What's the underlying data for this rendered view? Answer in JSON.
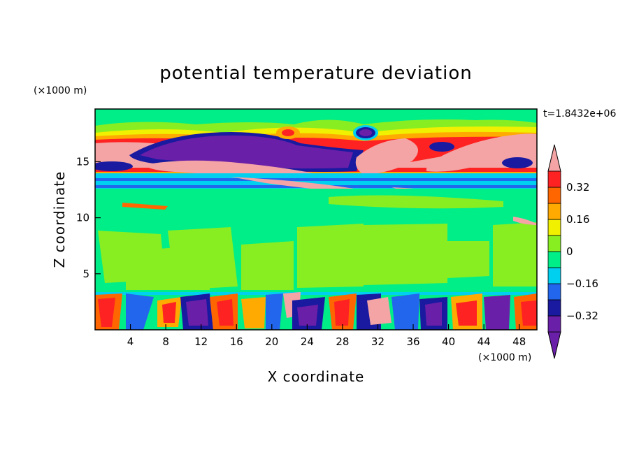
{
  "chart_data": {
    "type": "heatmap",
    "title": "potential temperature deviation",
    "xlabel": "X coordinate",
    "ylabel": "Z coordinate",
    "x_unit": "(×1000 m)",
    "y_unit": "(×1000 m)",
    "time_label": "t=1.8432e+06",
    "xlim": [
      0,
      50
    ],
    "ylim": [
      0,
      19.7
    ],
    "x_ticks": [
      4,
      8,
      12,
      16,
      20,
      24,
      28,
      32,
      36,
      40,
      44,
      48
    ],
    "y_ticks": [
      5,
      10,
      15
    ],
    "colorbar": {
      "levels": [
        -0.4,
        -0.32,
        -0.24,
        -0.16,
        -0.08,
        0,
        0.08,
        0.16,
        0.24,
        0.32,
        0.4
      ],
      "tick_labels": [
        "0.32",
        "0.16",
        "0",
        "−0.16",
        "−0.32"
      ],
      "tick_values": [
        0.32,
        0.16,
        0,
        -0.16,
        -0.32
      ],
      "colors": [
        "#6a1fa8",
        "#1a1aa0",
        "#2266ee",
        "#00d0f0",
        "#00ee88",
        "#88ee22",
        "#f0f000",
        "#ffaa00",
        "#ff6600",
        "#ff2222",
        "#f4a4a4"
      ],
      "extend": "both"
    },
    "grid": false
  }
}
